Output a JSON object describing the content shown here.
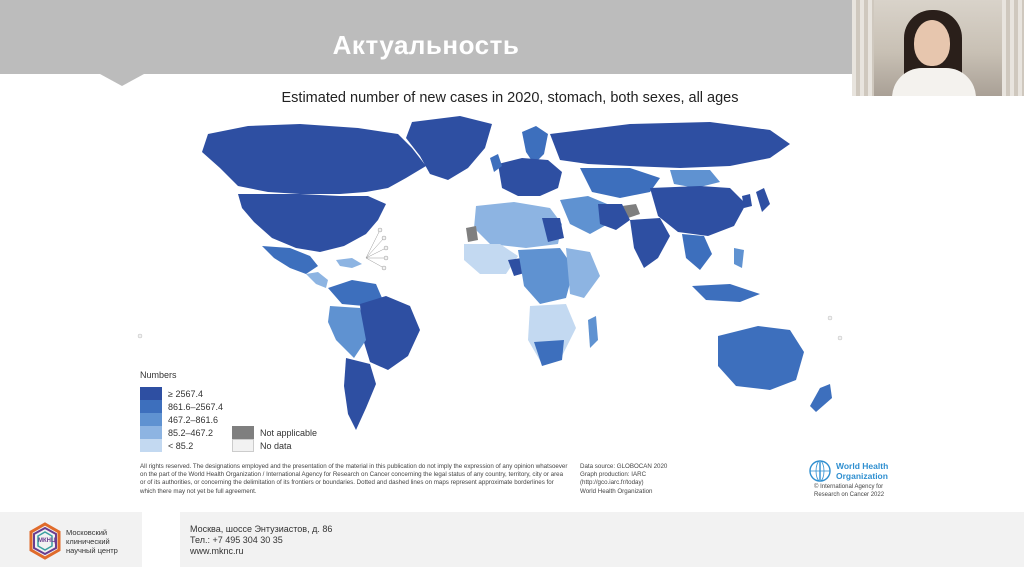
{
  "slide": {
    "title": "Актуальность"
  },
  "map": {
    "title": "Estimated number of new cases in 2020, stomach, both sexes, all ages",
    "colors": {
      "bin5": "#2e4fa2",
      "bin4": "#3d6fbd",
      "bin3": "#5f92d1",
      "bin2": "#8db4e2",
      "bin1": "#c3d9f1",
      "not_applicable": "#7f7f7f",
      "no_data": "#f2f2f2"
    }
  },
  "legend": {
    "title": "Numbers",
    "items": [
      {
        "label": "≥ 2567.4",
        "color": "#2e4fa2"
      },
      {
        "label": "861.6–2567.4",
        "color": "#3d6fbd"
      },
      {
        "label": "467.2–861.6",
        "color": "#5f92d1"
      },
      {
        "label": "85.2–467.2",
        "color": "#8db4e2"
      },
      {
        "label": "< 85.2",
        "color": "#c3d9f1"
      }
    ],
    "not_applicable": {
      "label": "Not applicable",
      "color": "#7f7f7f"
    },
    "no_data": {
      "label": "No data",
      "color": "#f2f2f2"
    }
  },
  "disclaimer": "All rights reserved. The designations employed and the presentation of the material in this publication do not imply the expression of any opinion whatsoever on the part of the World Health Organization / International Agency for Research on Cancer concerning the legal status of any country, territory, city or area or of its authorities, or concerning the delimitation of its frontiers or boundaries. Dotted and dashed lines on maps represent approximate borderlines for which there may not yet be full agreement.",
  "datasource": {
    "line1": "Data source: GLOBOCAN 2020",
    "line2": "Graph production: IARC",
    "line3": "(http://gco.iarc.fr/today)",
    "line4": "World Health Organization"
  },
  "who": {
    "name_line1": "World Health",
    "name_line2": "Organization",
    "iarc_line1": "© International Agency for",
    "iarc_line2": "Research on Cancer 2022"
  },
  "footer": {
    "logo_badge": "МКНЦ",
    "org_line1": "Московский",
    "org_line2": "клинический",
    "org_line3": "научный центр",
    "address": "Москва, шоссе Энтузиастов, д. 86",
    "phone": "Тел.: +7 495 304 30 35",
    "website": "www.mknc.ru"
  }
}
